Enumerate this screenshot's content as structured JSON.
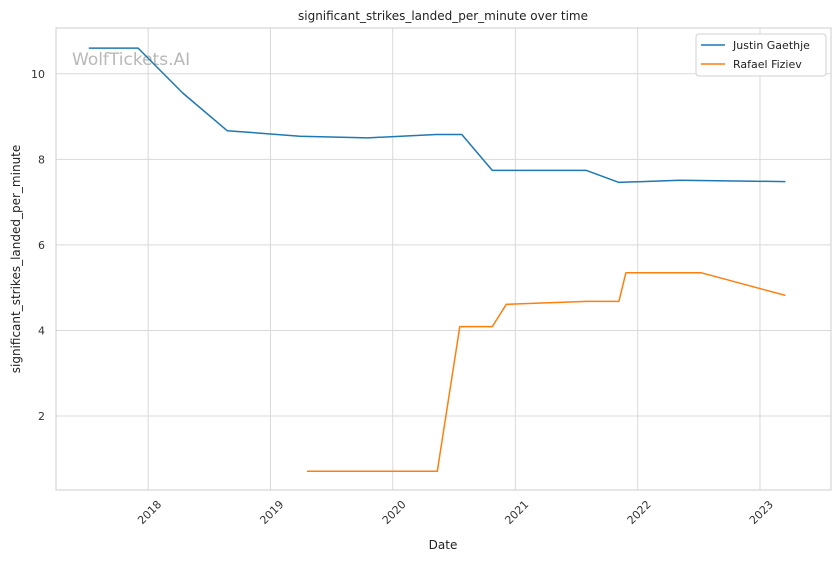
{
  "chart_data": {
    "type": "line",
    "title": "significant_strikes_landed_per_minute over time",
    "xlabel": "Date",
    "ylabel": "significant_strikes_landed_per_minute",
    "x_ticks": [
      "2018",
      "2019",
      "2020",
      "2021",
      "2022",
      "2023"
    ],
    "y_ticks": [
      2,
      4,
      6,
      8,
      10
    ],
    "xlim": [
      "2017-04-01",
      "2023-08-01"
    ],
    "ylim": [
      0.27,
      11.07
    ],
    "grid": true,
    "legend_position": "top-right",
    "watermark": "WolfTickets.AI",
    "series": [
      {
        "name": "Justin Gaethje",
        "color": "#1f77b4",
        "points": [
          [
            "2017-07-08",
            10.6
          ],
          [
            "2017-12-02",
            10.6
          ],
          [
            "2018-04-14",
            9.55
          ],
          [
            "2018-08-25",
            8.67
          ],
          [
            "2019-03-30",
            8.54
          ],
          [
            "2019-10-18",
            8.5
          ],
          [
            "2020-05-09",
            8.58
          ],
          [
            "2020-07-25",
            8.58
          ],
          [
            "2020-10-24",
            7.74
          ],
          [
            "2021-08-01",
            7.74
          ],
          [
            "2021-11-06",
            7.46
          ],
          [
            "2022-05-07",
            7.51
          ],
          [
            "2023-03-18",
            7.48
          ]
        ]
      },
      {
        "name": "Rafael Fiziev",
        "color": "#ff7f0e",
        "points": [
          [
            "2019-04-20",
            0.71
          ],
          [
            "2020-05-13",
            0.71
          ],
          [
            "2020-07-19",
            4.09
          ],
          [
            "2020-10-24",
            4.09
          ],
          [
            "2020-12-05",
            4.61
          ],
          [
            "2021-08-01",
            4.68
          ],
          [
            "2021-11-06",
            4.68
          ],
          [
            "2021-11-27",
            5.35
          ],
          [
            "2022-07-09",
            5.35
          ],
          [
            "2023-03-18",
            4.82
          ]
        ]
      }
    ]
  }
}
